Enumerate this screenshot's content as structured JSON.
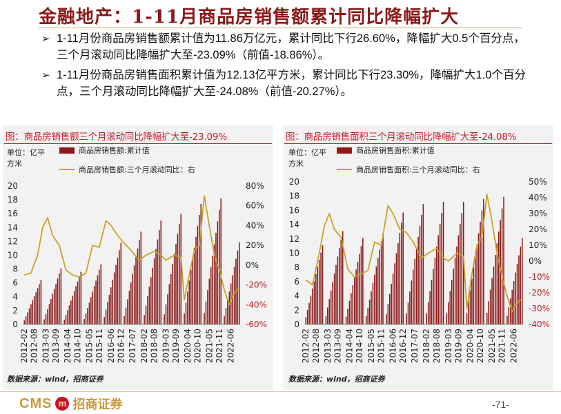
{
  "header": {
    "title": "金融地产：1-11月商品房销售额累计同比降幅扩大"
  },
  "bullets": [
    "1-11月份商品房销售额累计值为11.86万亿元，累计同比下行26.60%，降幅扩大0.5个百分点，三个月滚动同比降幅扩大至-23.09%（前值-18.86%）。",
    "1-11月份商品房销售面积累计值为12.13亿平方米，累计同比下行23.30%，降幅扩大1.0个百分点，三个月滚动同比降幅扩大至-24.08%（前值-20.27%）。"
  ],
  "colors": {
    "bar": "#8b1a1a",
    "line": "#c9a227",
    "right_axis": "#c0202a",
    "title_red": "#c0202a"
  },
  "chart_data": [
    {
      "type": "bar",
      "title": "图：商品房销售额三个月滚动同比降幅扩大至-23.09%",
      "unit_label": "单位：亿平方米",
      "source": "数据来源：wind，招商证券",
      "legend": [
        "商品房销售额:累计值",
        "商品房销售额:三个月滚动同比：右"
      ],
      "left_axis": {
        "ticks": [
          "20",
          "18",
          "16",
          "14",
          "12",
          "10",
          "8",
          "6",
          "4",
          "2",
          "0"
        ],
        "ylim": [
          0,
          20
        ]
      },
      "right_axis": {
        "ticks": [
          "80%",
          "60%",
          "40%",
          "20%",
          "0%",
          "-20%",
          "-40%",
          "-60%"
        ],
        "ylim": [
          -60,
          80
        ],
        "color": "#c0202a"
      },
      "x_ticks": [
        "2012-02",
        "2012-08",
        "2013-03",
        "2013-09",
        "2014-04",
        "2014-10",
        "2015-05",
        "2015-11",
        "2016-06",
        "2016-12",
        "2017-07",
        "2018-02",
        "2018-08",
        "2019-03",
        "2019-09",
        "2020-04",
        "2020-10",
        "2021-05",
        "2021-11",
        "2022-06"
      ],
      "start": "2012-02",
      "bars": {
        "name": "商品房销售额:累计值",
        "year_end": [
          6.4,
          8.1,
          7.6,
          8.7,
          11.8,
          13.4,
          15.0,
          16.0,
          17.4,
          18.2,
          11.86
        ],
        "final_month": 11
      },
      "line": {
        "name": "商品房销售额:三个月滚动同比",
        "anchors": [
          [
            "2012-02",
            -10
          ],
          [
            "2012-06",
            -8
          ],
          [
            "2012-10",
            10
          ],
          [
            "2013-01",
            38
          ],
          [
            "2013-04",
            48
          ],
          [
            "2013-07",
            30
          ],
          [
            "2013-11",
            20
          ],
          [
            "2014-03",
            -5
          ],
          [
            "2014-07",
            -10
          ],
          [
            "2014-11",
            -12
          ],
          [
            "2015-03",
            -8
          ],
          [
            "2015-07",
            20
          ],
          [
            "2015-11",
            18
          ],
          [
            "2016-03",
            45
          ],
          [
            "2016-06",
            40
          ],
          [
            "2016-10",
            30
          ],
          [
            "2017-02",
            22
          ],
          [
            "2017-06",
            15
          ],
          [
            "2017-11",
            5
          ],
          [
            "2018-03",
            10
          ],
          [
            "2018-08",
            14
          ],
          [
            "2018-12",
            10
          ],
          [
            "2019-03",
            5
          ],
          [
            "2019-08",
            10
          ],
          [
            "2019-12",
            8
          ],
          [
            "2020-02",
            -35
          ],
          [
            "2020-05",
            -10
          ],
          [
            "2020-08",
            15
          ],
          [
            "2020-11",
            20
          ],
          [
            "2021-02",
            70
          ],
          [
            "2021-05",
            40
          ],
          [
            "2021-08",
            10
          ],
          [
            "2021-11",
            -5
          ],
          [
            "2022-02",
            -25
          ],
          [
            "2022-05",
            -40
          ],
          [
            "2022-08",
            -28
          ],
          [
            "2022-11",
            -23.09
          ]
        ]
      }
    },
    {
      "type": "bar",
      "title": "图：商品房销售面积三个月滚动同比降幅扩大至-24.08%",
      "unit_label": "单位：亿平方米",
      "source": "数据来源：wind，招商证券",
      "legend": [
        "商品房销售面积:累计值",
        "商品房销售面积:三个月滚动同比：右"
      ],
      "left_axis": {
        "ticks": [
          "20",
          "18",
          "16",
          "14",
          "12",
          "10",
          "8",
          "6",
          "4",
          "2",
          "0"
        ],
        "ylim": [
          0,
          20
        ]
      },
      "right_axis": {
        "ticks": [
          "50%",
          "40%",
          "30%",
          "20%",
          "10%",
          "0%",
          "-10%",
          "-20%",
          "-30%",
          "-40%"
        ],
        "ylim": [
          -40,
          50
        ],
        "color": "#c0202a"
      },
      "x_ticks": [
        "2012-02",
        "2012-08",
        "2013-03",
        "2013-09",
        "2014-04",
        "2014-10",
        "2015-05",
        "2015-11",
        "2016-06",
        "2016-12",
        "2017-07",
        "2018-02",
        "2018-08",
        "2019-03",
        "2019-09",
        "2020-04",
        "2020-10",
        "2021-05",
        "2021-11",
        "2022-06"
      ],
      "start": "2012-02",
      "bars": {
        "name": "商品房销售面积:累计值",
        "year_end": [
          11.1,
          13.1,
          12.1,
          12.8,
          15.7,
          16.9,
          17.2,
          17.2,
          17.6,
          17.9,
          12.13
        ],
        "final_month": 11
      },
      "line": {
        "name": "商品房销售面积:三个月滚动同比",
        "anchors": [
          [
            "2012-02",
            -12
          ],
          [
            "2012-06",
            -15
          ],
          [
            "2012-10",
            5
          ],
          [
            "2013-01",
            22
          ],
          [
            "2013-04",
            30
          ],
          [
            "2013-07",
            20
          ],
          [
            "2013-11",
            15
          ],
          [
            "2014-03",
            -5
          ],
          [
            "2014-07",
            -10
          ],
          [
            "2014-11",
            -8
          ],
          [
            "2015-03",
            -6
          ],
          [
            "2015-07",
            12
          ],
          [
            "2015-11",
            10
          ],
          [
            "2016-03",
            35
          ],
          [
            "2016-06",
            30
          ],
          [
            "2016-10",
            20
          ],
          [
            "2017-02",
            18
          ],
          [
            "2017-06",
            12
          ],
          [
            "2017-11",
            2
          ],
          [
            "2018-03",
            5
          ],
          [
            "2018-08",
            8
          ],
          [
            "2018-12",
            2
          ],
          [
            "2019-03",
            0
          ],
          [
            "2019-08",
            5
          ],
          [
            "2019-12",
            3
          ],
          [
            "2020-02",
            -30
          ],
          [
            "2020-05",
            -8
          ],
          [
            "2020-08",
            10
          ],
          [
            "2020-11",
            15
          ],
          [
            "2021-02",
            42
          ],
          [
            "2021-05",
            25
          ],
          [
            "2021-08",
            5
          ],
          [
            "2021-11",
            -10
          ],
          [
            "2022-02",
            -22
          ],
          [
            "2022-05",
            -32
          ],
          [
            "2022-08",
            -26
          ],
          [
            "2022-11",
            -24.08
          ]
        ]
      }
    }
  ],
  "footer": {
    "brand_latin": "CMS",
    "brand_mark": "m",
    "brand_cn": "招商证券",
    "page": "-71-"
  }
}
